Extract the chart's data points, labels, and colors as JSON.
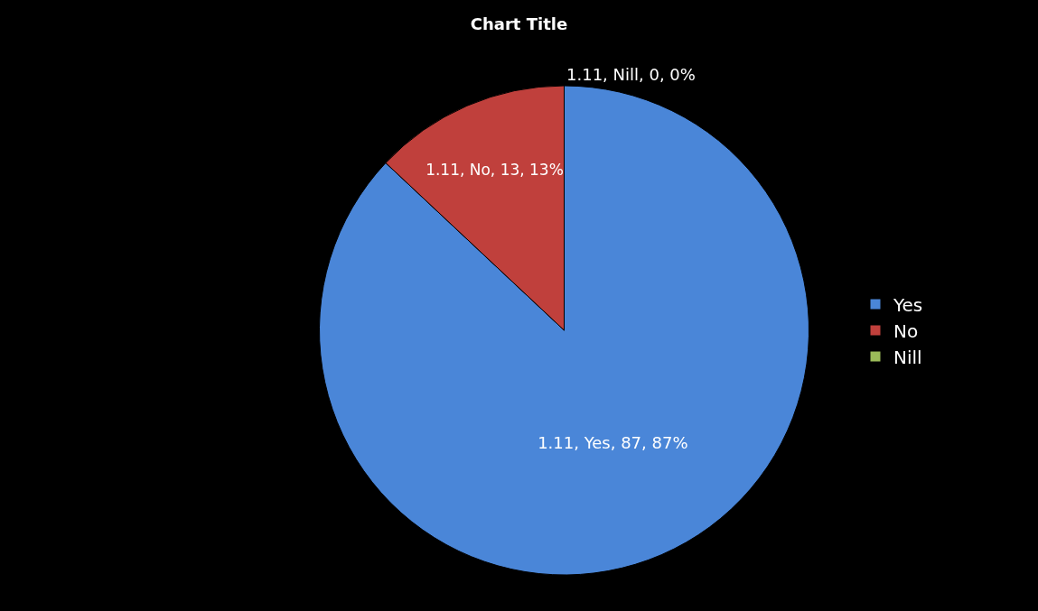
{
  "chart_data": {
    "type": "pie",
    "title": "Chart Title",
    "categories": [
      "Yes",
      "No",
      "Nill"
    ],
    "values": [
      87,
      13,
      0
    ],
    "colors": [
      "#4a86d8",
      "#c0403c",
      "#9bbb59"
    ],
    "value_labels": [
      "1.11, Yes, 87, 87%",
      "1.11, No, 13, 13%",
      "1.11, Nill, 0, 0%"
    ],
    "legend": "right"
  }
}
